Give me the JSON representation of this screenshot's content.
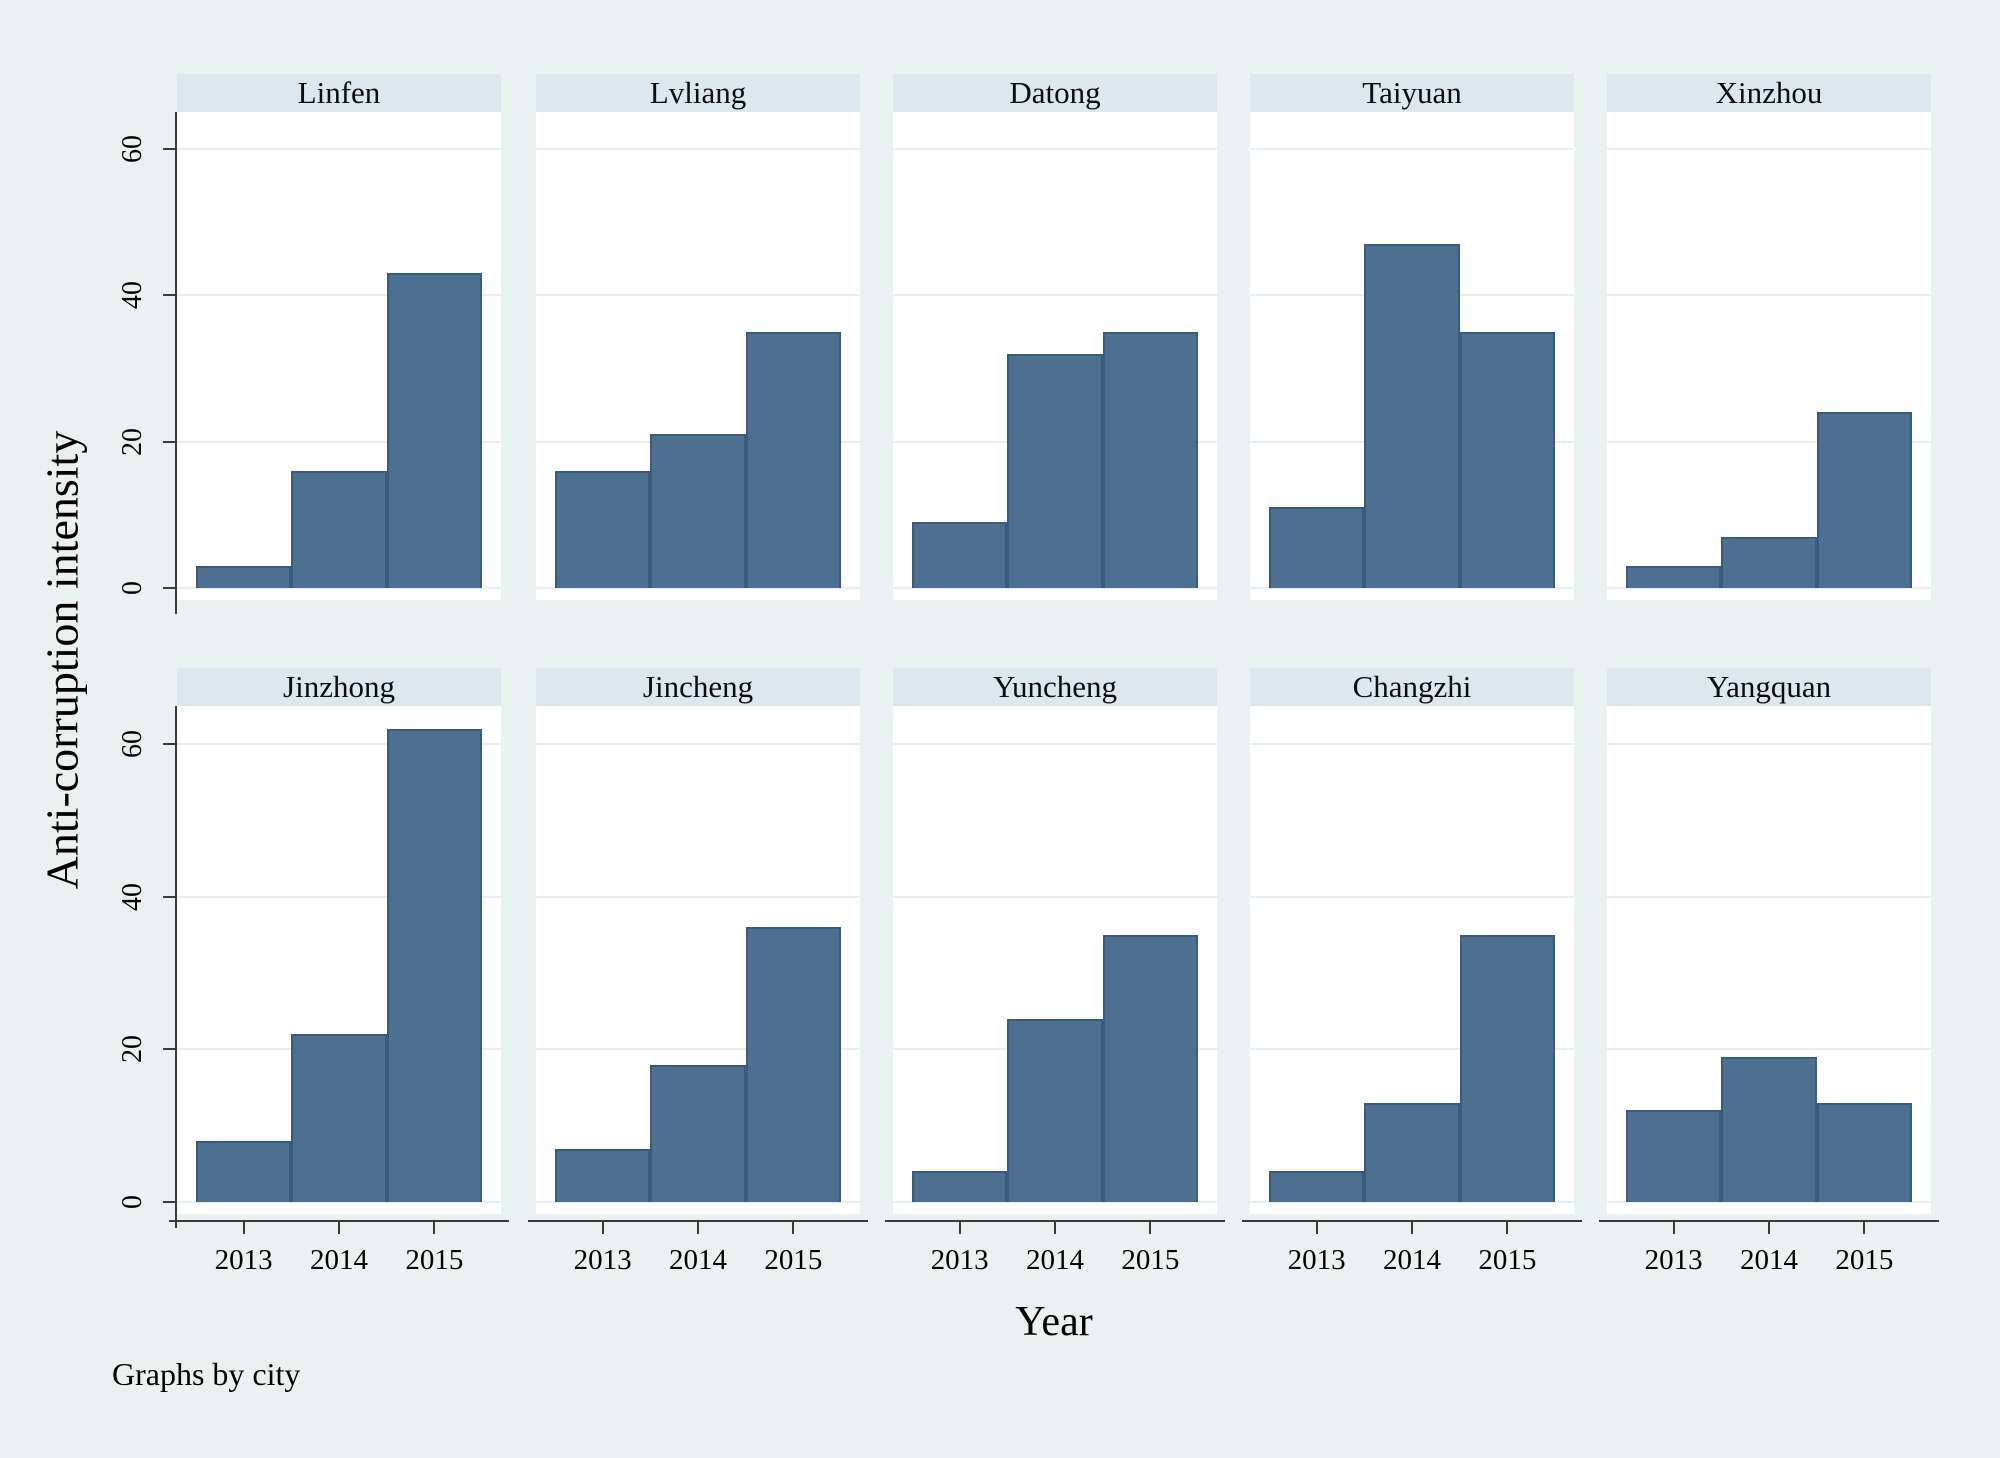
{
  "figure": {
    "y_axis_title": "Anti-corruption intensity",
    "x_axis_title": "Year",
    "caption": "Graphs by city"
  },
  "chart_data": {
    "type": "bar",
    "subtype": "faceted-histogram",
    "facet_field": "city",
    "facet_note": "Graphs by city",
    "categories": [
      "2013",
      "2014",
      "2015"
    ],
    "xlabel": "Year",
    "ylabel": "Anti-corruption intensity",
    "y_ticks": [
      0,
      20,
      40,
      60
    ],
    "ylim": [
      0,
      65
    ],
    "grid": true,
    "legend": "none",
    "panels": [
      {
        "city": "Linfen",
        "values": [
          3,
          16,
          43
        ]
      },
      {
        "city": "Lvliang",
        "values": [
          16,
          21,
          35
        ]
      },
      {
        "city": "Datong",
        "values": [
          9,
          32,
          35
        ]
      },
      {
        "city": "Taiyuan",
        "values": [
          11,
          47,
          35
        ]
      },
      {
        "city": "Xinzhou",
        "values": [
          3,
          7,
          24
        ]
      },
      {
        "city": "Jinzhong",
        "values": [
          8,
          22,
          62
        ]
      },
      {
        "city": "Jincheng",
        "values": [
          7,
          18,
          36
        ]
      },
      {
        "city": "Yuncheng",
        "values": [
          4,
          24,
          35
        ]
      },
      {
        "city": "Changzhi",
        "values": [
          4,
          13,
          35
        ]
      },
      {
        "city": "Yangquan",
        "values": [
          12,
          19,
          13
        ]
      }
    ]
  },
  "colors": {
    "background": "#e9f2f0",
    "panel_header": "#dce8ee",
    "plot_background": "#ffffff",
    "gridline": "#e7eef5",
    "bar_fill": "#4d7090",
    "bar_border": "#3a5a7e",
    "axis": "#3a3a3a",
    "text": "#000000"
  }
}
